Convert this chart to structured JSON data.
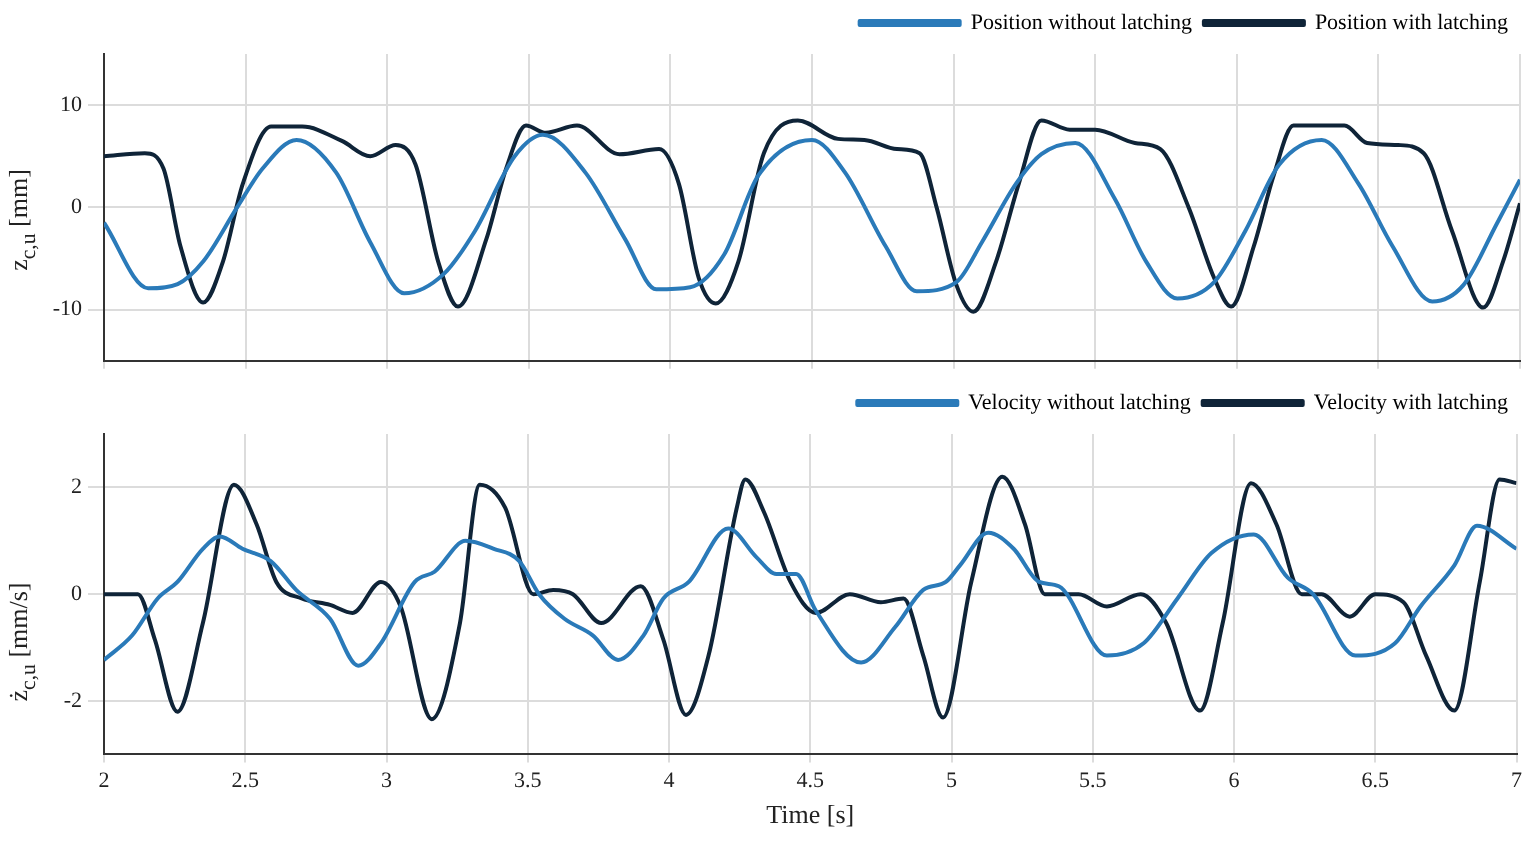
{
  "chart_data": [
    {
      "type": "line",
      "ylabel": "z$_{c,u}$ [mm]",
      "xlim": [
        2,
        7
      ],
      "xticks": [
        2,
        2.5,
        3,
        3.5,
        4,
        4.5,
        5,
        5.5,
        6,
        6.5,
        7
      ],
      "ylim": [
        -15,
        15
      ],
      "yticks": [
        -10,
        0,
        10
      ],
      "grid": true,
      "legend": "top right",
      "tick_labels": "y",
      "marker": "none",
      "line_style": "solid",
      "series": [
        {
          "name": "Position without latching",
          "color": "#2a7ab9",
          "x": [
            2.0,
            2.156,
            2.26,
            2.35,
            2.47,
            2.56,
            2.68,
            2.82,
            2.94,
            3.06,
            3.2,
            3.31,
            3.45,
            3.55,
            3.7,
            3.84,
            3.95,
            4.07,
            4.19,
            4.31,
            4.5,
            4.617,
            4.76,
            4.87,
            5.01,
            5.1,
            5.22,
            5.31,
            5.43,
            5.57,
            5.68,
            5.79,
            5.92,
            6.03,
            6.15,
            6.3,
            6.43,
            6.55,
            6.69,
            6.8,
            6.92,
            7.0
          ],
          "values": [
            -1.5,
            -7.9,
            -7.5,
            -5.3,
            0,
            3.8,
            6.6,
            3.4,
            -3.4,
            -8.4,
            -6.5,
            -2.3,
            5.0,
            7.1,
            3.4,
            -3.1,
            -8.0,
            -7.8,
            -4.6,
            3.1,
            6.6,
            3.4,
            -3.8,
            -8.2,
            -7.3,
            -3.4,
            2.3,
            5.2,
            6.3,
            0.8,
            -5.3,
            -8.9,
            -7.3,
            -2.3,
            4.2,
            6.6,
            2.3,
            -3.8,
            -9.2,
            -7.6,
            -1.5,
            2.7
          ]
        },
        {
          "name": "Position with latching",
          "color": "#0f2438",
          "x": [
            2.0,
            2.144,
            2.21,
            2.27,
            2.35,
            2.42,
            2.49,
            2.59,
            2.7,
            2.84,
            2.94,
            3.03,
            3.1,
            3.18,
            3.25,
            3.35,
            3.42,
            3.49,
            3.56,
            3.67,
            3.82,
            3.96,
            4.03,
            4.1,
            4.16,
            4.24,
            4.33,
            4.45,
            4.592,
            4.685,
            4.8,
            4.88,
            4.94,
            5.01,
            5.07,
            5.15,
            5.23,
            5.31,
            5.41,
            5.5,
            5.64,
            5.73,
            5.83,
            5.92,
            5.98,
            6.06,
            6.13,
            6.2,
            6.29,
            6.38,
            6.46,
            6.57,
            6.66,
            6.76,
            6.87,
            6.94,
            7.0
          ],
          "values": [
            5.0,
            5.3,
            3.8,
            -3.8,
            -9.3,
            -5.3,
            2.3,
            7.9,
            7.9,
            6.5,
            5.0,
            6.1,
            4.2,
            -5.3,
            -9.7,
            -3.1,
            3.8,
            8.0,
            7.3,
            8.0,
            5.2,
            5.7,
            2.3,
            -6.9,
            -9.4,
            -5.3,
            5.3,
            8.5,
            6.7,
            6.6,
            5.7,
            5.3,
            0,
            -7.6,
            -10.2,
            -5.3,
            2.3,
            8.5,
            7.6,
            7.6,
            6.3,
            5.7,
            0,
            -6.9,
            -9.7,
            -3.8,
            3.1,
            8.0,
            8.0,
            8.0,
            6.3,
            6.1,
            5.3,
            -2.3,
            -9.8,
            -5.3,
            0.4
          ]
        }
      ]
    },
    {
      "type": "line",
      "xlabel": "Time [s]",
      "ylabel": "ż$_{c,u}$ [mm/s]",
      "xlim": [
        2,
        7
      ],
      "xticks": [
        2,
        2.5,
        3,
        3.5,
        4,
        4.5,
        5,
        5.5,
        6,
        6.5,
        7
      ],
      "ylim": [
        -3,
        3
      ],
      "yticks": [
        -2,
        0,
        2
      ],
      "grid": true,
      "legend": "top right",
      "marker": "none",
      "line_style": "solid",
      "series": [
        {
          "name": "Velocity without latching",
          "color": "#2a7ab9",
          "x": [
            2.0,
            2.1,
            2.19,
            2.26,
            2.35,
            2.41,
            2.49,
            2.59,
            2.68,
            2.8,
            2.9,
            2.98,
            3.1,
            3.17,
            3.28,
            3.38,
            3.47,
            3.54,
            3.63,
            3.73,
            3.82,
            3.91,
            3.98,
            4.07,
            4.21,
            4.31,
            4.38,
            4.45,
            4.52,
            4.68,
            4.8,
            4.9,
            4.98,
            5.03,
            5.13,
            5.22,
            5.31,
            5.38,
            5.55,
            5.68,
            5.8,
            5.92,
            6.07,
            6.19,
            6.28,
            6.43,
            6.57,
            6.66,
            6.78,
            6.86,
            7.0
          ],
          "values": [
            -1.23,
            -0.77,
            -0.08,
            0.23,
            0.85,
            1.08,
            0.85,
            0.62,
            0.08,
            -0.46,
            -1.34,
            -0.92,
            0.23,
            0.42,
            1.0,
            0.85,
            0.62,
            0,
            -0.46,
            -0.77,
            -1.23,
            -0.77,
            -0.08,
            0.23,
            1.23,
            0.69,
            0.38,
            0.38,
            -0.31,
            -1.28,
            -0.62,
            0.08,
            0.23,
            0.54,
            1.15,
            0.85,
            0.23,
            0.15,
            -1.15,
            -0.92,
            -0.08,
            0.77,
            1.12,
            0.31,
            0,
            -1.15,
            -0.92,
            -0.23,
            0.54,
            1.28,
            0.85
          ]
        },
        {
          "name": "Velocity with latching",
          "color": "#0f2438",
          "x": [
            2.0,
            2.12,
            2.18,
            2.26,
            2.35,
            2.46,
            2.54,
            2.61,
            2.7,
            2.8,
            2.88,
            2.98,
            3.05,
            3.16,
            3.26,
            3.33,
            3.42,
            3.52,
            3.59,
            3.66,
            3.76,
            3.9,
            3.98,
            4.06,
            4.14,
            4.24,
            4.27,
            4.336,
            4.43,
            4.52,
            4.64,
            4.75,
            4.83,
            4.9,
            4.97,
            5.07,
            5.18,
            5.26,
            5.33,
            5.45,
            5.55,
            5.67,
            5.76,
            5.88,
            5.96,
            6.06,
            6.15,
            6.24,
            6.31,
            6.41,
            6.5,
            6.6,
            6.68,
            6.78,
            6.87,
            6.94,
            7.0
          ],
          "values": [
            0,
            0,
            -0.85,
            -2.2,
            -0.54,
            2.05,
            1.31,
            0.23,
            -0.08,
            -0.2,
            -0.35,
            0.23,
            -0.23,
            -2.34,
            -0.54,
            2.05,
            1.62,
            0,
            0.08,
            0,
            -0.54,
            0.15,
            -0.85,
            -2.26,
            -1.15,
            1.62,
            2.15,
            1.54,
            0.23,
            -0.35,
            0,
            -0.15,
            -0.08,
            -1.15,
            -2.31,
            0.23,
            2.2,
            1.31,
            0,
            0,
            -0.23,
            0,
            -0.54,
            -2.18,
            -0.54,
            2.08,
            1.31,
            0,
            0,
            -0.42,
            0,
            -0.15,
            -1.15,
            -2.18,
            0.23,
            2.15,
            2.08
          ]
        }
      ]
    }
  ]
}
